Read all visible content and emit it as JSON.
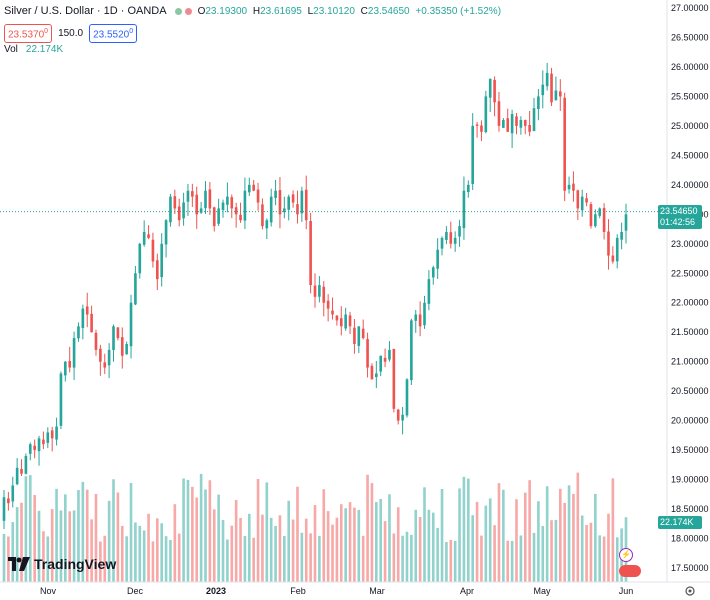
{
  "header": {
    "title": "Silver / U.S. Dollar · 1D · OANDA",
    "dot_colors": [
      "#8bc7a3",
      "#f08a92"
    ],
    "ohlc": [
      {
        "k": "O",
        "v": "23.19300"
      },
      {
        "k": "H",
        "v": "23.61695"
      },
      {
        "k": "L",
        "v": "23.10120"
      },
      {
        "k": "C",
        "v": "23.54650"
      },
      {
        "k": "",
        "v": "+0.35350 (+1.52%)"
      }
    ],
    "bid": "23.5370",
    "bid_sup": "0",
    "spread": "150.0",
    "ask": "23.5520",
    "ask_sup": "0",
    "vol_label": "Vol",
    "vol_value": "22.174K"
  },
  "colors": {
    "up": "#26a69a",
    "down": "#ef5350",
    "up_vol": "#92d2cc",
    "down_vol": "#f7a9a7",
    "price_line": "#26a69a"
  },
  "price_axis": {
    "ticks": [
      "27.00000",
      "26.50000",
      "26.00000",
      "25.50000",
      "25.00000",
      "24.50000",
      "24.00000",
      "23.50000",
      "23.00000",
      "22.50000",
      "22.00000",
      "21.50000",
      "21.00000",
      "20.50000",
      "20.00000",
      "19.50000",
      "19.00000",
      "18.50000",
      "18.00000",
      "17.50000"
    ],
    "current_price": "23.54650",
    "countdown": "01:42:56",
    "volume_tag": "22.174K"
  },
  "time_axis": {
    "labels": [
      "Nov",
      "Dec",
      "2023",
      "Feb",
      "Mar",
      "Apr",
      "May",
      "Jun"
    ]
  },
  "logo": {
    "text": "TradingView"
  },
  "chart_data": {
    "type": "candlestick",
    "symbol": "Silver / U.S. Dollar",
    "interval": "1D",
    "y_range": [
      17.5,
      27.0
    ],
    "close": [
      18.7,
      18.6,
      18.9,
      19.2,
      19.1,
      19.4,
      19.6,
      19.5,
      19.7,
      19.6,
      19.8,
      19.7,
      19.9,
      20.8,
      21.0,
      20.9,
      21.4,
      21.6,
      21.9,
      21.8,
      21.5,
      21.2,
      21.0,
      20.9,
      21.2,
      21.6,
      21.4,
      21.1,
      21.3,
      22.0,
      22.5,
      23.0,
      23.2,
      23.1,
      22.7,
      22.4,
      23.0,
      23.4,
      23.8,
      23.6,
      23.4,
      23.7,
      23.9,
      23.8,
      23.5,
      23.6,
      23.9,
      23.6,
      23.3,
      23.6,
      23.7,
      23.8,
      23.6,
      23.5,
      23.4,
      23.9,
      24.0,
      23.9,
      23.7,
      23.3,
      23.4,
      23.8,
      23.9,
      23.5,
      23.6,
      23.8,
      23.7,
      23.5,
      23.9,
      23.4,
      22.3,
      22.1,
      22.3,
      22.0,
      21.9,
      21.8,
      21.7,
      21.6,
      21.8,
      21.6,
      21.3,
      21.6,
      21.4,
      20.9,
      20.7,
      20.8,
      21.1,
      21.0,
      21.2,
      20.2,
      20.0,
      20.1,
      20.7,
      21.7,
      21.8,
      21.6,
      22.0,
      22.4,
      22.6,
      22.9,
      23.1,
      23.2,
      23.0,
      23.1,
      23.3,
      23.9,
      24.0,
      25.0,
      25.0,
      24.9,
      25.5,
      25.8,
      25.4,
      25.0,
      25.1,
      24.9,
      25.2,
      25.0,
      25.1,
      25.0,
      24.9,
      25.3,
      25.5,
      25.7,
      25.9,
      25.4,
      25.6,
      25.5,
      23.9,
      24.0,
      23.9,
      23.6,
      23.8,
      23.7,
      23.3,
      23.5,
      23.6,
      23.2,
      22.8,
      22.7,
      23.1,
      23.2,
      23.5
    ]
  }
}
